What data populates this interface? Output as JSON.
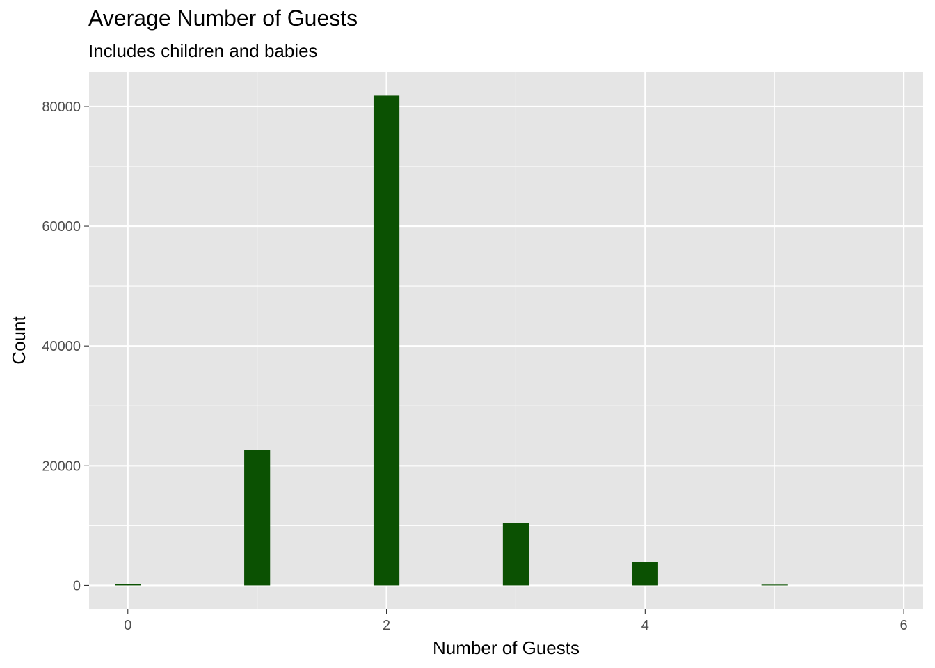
{
  "chart_data": {
    "type": "bar",
    "title": "Average Number of Guests",
    "subtitle": "Includes children and babies",
    "xlabel": "Number of Guests",
    "ylabel": "Count",
    "x": [
      0,
      1,
      2,
      3,
      4,
      5,
      6
    ],
    "values": [
      180,
      22600,
      81800,
      10500,
      3900,
      130,
      0
    ],
    "xlim": [
      -0.3,
      6.15
    ],
    "ylim": [
      -3900,
      85800
    ],
    "x_ticks": [
      "0",
      "2",
      "4",
      "6"
    ],
    "y_ticks": [
      "0",
      "20000",
      "40000",
      "60000",
      "80000"
    ],
    "grid": true,
    "colors": {
      "bar": "#0b5102",
      "panel": "#e5e5e5",
      "grid": "#ffffff"
    }
  }
}
